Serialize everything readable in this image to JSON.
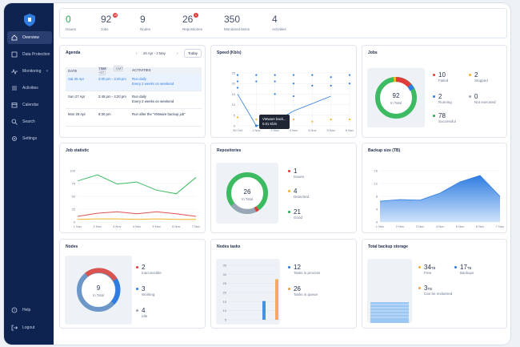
{
  "sidebar": {
    "items": [
      {
        "label": "Overview",
        "icon": "home-icon"
      },
      {
        "label": "Data Protection",
        "icon": "shield-icon"
      },
      {
        "label": "Monitoring",
        "icon": "pulse-icon"
      },
      {
        "label": "Activities",
        "icon": "list-icon"
      },
      {
        "label": "Calendar",
        "icon": "calendar-icon"
      },
      {
        "label": "Search",
        "icon": "search-icon"
      },
      {
        "label": "Settings",
        "icon": "gear-icon"
      }
    ],
    "bottom": [
      {
        "label": "Help",
        "icon": "help-icon"
      },
      {
        "label": "Logout",
        "icon": "logout-icon"
      }
    ]
  },
  "stats": [
    {
      "value": "0",
      "label": "Issues"
    },
    {
      "value": "92",
      "label": "Jobs",
      "badge": "18"
    },
    {
      "value": "9",
      "label": "Nodes"
    },
    {
      "value": "26",
      "label": "Repositories",
      "badge": "1"
    },
    {
      "value": "350",
      "label": "Monitored items"
    },
    {
      "value": "4",
      "label": "Activities"
    }
  ],
  "agenda": {
    "title": "Agenda",
    "range": "26 Apr - 3 May",
    "today": "Today",
    "headers": [
      "DATE",
      "TIME",
      "ACTIVITIES"
    ],
    "tz": "GMT +07",
    "rows": [
      {
        "date": "Sat 26 Apr",
        "time": "3:00 pm - 3:45 pm",
        "line1": "Run daily",
        "line2": "Every 2 weeks on weekend"
      },
      {
        "date": "Sun 27 Apr",
        "time": "3:45 pm - 4:20 pm",
        "line1": "Run daily",
        "line2": "Every 2 weeks on weekend"
      },
      {
        "date": "Mon 28 Apr",
        "time": "8:30 pm",
        "line1": "Run after the \"VMware backup job\"",
        "line2": ""
      }
    ]
  },
  "speed": {
    "title": "Speed (Kb/s)",
    "tooltip_line1": "VMware back...",
    "tooltip_line2": "0.01 Kb/s",
    "chart_data": {
      "type": "line",
      "categories": [
        "30 Oct",
        "1 Nov",
        "2 Nov",
        "3 Nov",
        "4 Nov",
        "5 Nov",
        "6 Nov"
      ],
      "yticks": [
        "25",
        "20",
        "15",
        "10",
        "5",
        "0"
      ],
      "ylim": [
        0,
        25
      ]
    }
  },
  "jobs": {
    "title": "Jobs",
    "total": "92",
    "total_label": "In Total",
    "items": [
      {
        "value": "10",
        "label": "Failed",
        "color": "#e23b3b"
      },
      {
        "value": "2",
        "label": "Stopped",
        "color": "#f0b429"
      },
      {
        "value": "2",
        "label": "Running",
        "color": "#2f7de1"
      },
      {
        "value": "0",
        "label": "Not executed",
        "color": "#9aa5b8"
      },
      {
        "value": "78",
        "label": "Successful",
        "color": "#25a955"
      }
    ]
  },
  "job_statistic": {
    "title": "Job statistic",
    "chart_data": {
      "type": "line",
      "categories": [
        "1 Nov",
        "2 Nov",
        "3 Nov",
        "4 Nov",
        "5 Nov",
        "6 Nov",
        "7 Nov"
      ],
      "yticks": [
        "100",
        "75",
        "50",
        "25",
        "0"
      ],
      "ylim": [
        0,
        100
      ],
      "series": [
        {
          "name": "Successful",
          "color": "#3dbb63",
          "values": [
            80,
            92,
            74,
            78,
            62,
            55,
            87
          ]
        },
        {
          "name": "Failed",
          "color": "#d9534f",
          "values": [
            11,
            17,
            20,
            16,
            20,
            16,
            11
          ]
        },
        {
          "name": "Warnings",
          "color": "#f0b429",
          "values": [
            5,
            6,
            6,
            5,
            6,
            5,
            5
          ]
        }
      ]
    }
  },
  "repositories": {
    "title": "Repositories",
    "total": "26",
    "total_label": "In Total",
    "items": [
      {
        "value": "1",
        "label": "Issues",
        "color": "#e23b3b"
      },
      {
        "value": "4",
        "label": "Detached",
        "color": "#f0b429"
      },
      {
        "value": "21",
        "label": "Good",
        "color": "#25a955"
      }
    ]
  },
  "backup_size": {
    "title": "Backup size (TB)",
    "chart_data": {
      "type": "area",
      "categories": [
        "1 Nov",
        "2 Nov",
        "3 Nov",
        "4 Nov",
        "5 Nov",
        "6 Nov",
        "7 Nov"
      ],
      "yticks": [
        "16",
        "12",
        "8",
        "4",
        "0"
      ],
      "ylim": [
        0,
        16
      ],
      "values": [
        6.5,
        7,
        6.8,
        9,
        12.5,
        14.5,
        8
      ]
    }
  },
  "nodes": {
    "title": "Nodes",
    "total": "9",
    "total_label": "In Total",
    "items": [
      {
        "value": "2",
        "label": "Inaccessible",
        "color": "#e23b3b"
      },
      {
        "value": "3",
        "label": "Working",
        "color": "#2f7de1"
      },
      {
        "value": "4",
        "label": "Idle",
        "color": "#9aa5b8"
      }
    ]
  },
  "node_tasks": {
    "title": "Nodes tasks",
    "chart_data": {
      "type": "bar",
      "categories": [
        "1 Nov",
        "2 Nov",
        "3 Nov"
      ],
      "yticks": [
        "35",
        "30",
        "25",
        "20",
        "15",
        "10",
        "5"
      ],
      "ylim": [
        0,
        35
      ],
      "series": [
        {
          "name": "Tasks in process",
          "color": "#2f7de1",
          "values": [
            0,
            0,
            12
          ]
        },
        {
          "name": "Tasks in queue",
          "color": "#f0a04b",
          "values": [
            0,
            0,
            26
          ]
        }
      ]
    },
    "items": [
      {
        "value": "12",
        "label": "Tasks in process",
        "color": "#2f7de1"
      },
      {
        "value": "26",
        "label": "Tasks in queue",
        "color": "#f0a04b"
      }
    ]
  },
  "storage": {
    "title": "Total backup storage",
    "items": [
      {
        "value": "34",
        "unit": "TB",
        "label": "Free",
        "color": "#f0b429"
      },
      {
        "value": "17",
        "unit": "TB",
        "label": "Backups",
        "color": "#2f7de1"
      },
      {
        "value": "3",
        "unit": "TB",
        "label": "Can be reclaimed",
        "color": "#f0a04b"
      }
    ]
  }
}
